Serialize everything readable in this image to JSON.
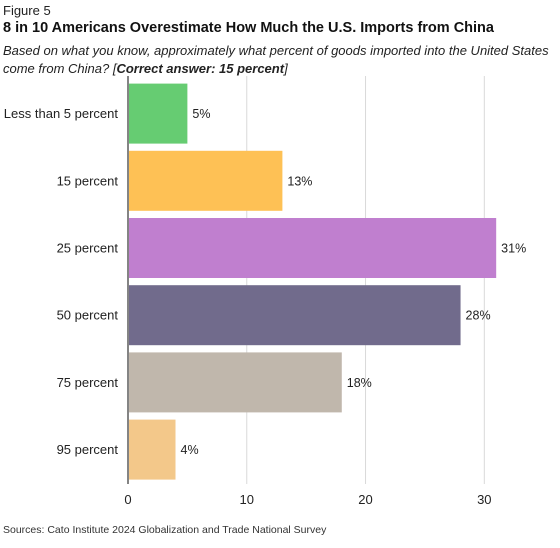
{
  "figure_label": "Figure 5",
  "title": "8 in 10 Americans Overestimate How Much the U.S. Imports from China",
  "subtitle_main": "Based on what you know, approximately what percent of goods imported into the United States come from China? [",
  "subtitle_answer": "Correct answer: 15 percent",
  "subtitle_end": "]",
  "source": "Sources: Cato Institute 2024 Globalization and Trade National Survey",
  "chart_data": {
    "type": "bar",
    "orientation": "horizontal",
    "categories": [
      "Less than 5 percent",
      "15 percent",
      "25 percent",
      "50 percent",
      "75 percent",
      "95 percent"
    ],
    "values": [
      5,
      13,
      31,
      28,
      18,
      4
    ],
    "value_labels": [
      "5%",
      "13%",
      "31%",
      "28%",
      "18%",
      "4%"
    ],
    "colors": [
      "#66cc72",
      "#fec155",
      "#c07fcf",
      "#716b8c",
      "#c0b7ac",
      "#f3c88a"
    ],
    "xlim": [
      0,
      32.5
    ],
    "xticks": [
      0,
      10,
      20,
      30
    ],
    "grid": true,
    "gridline_color": "#d9d9d9",
    "title": "8 in 10 Americans Overestimate How Much the U.S. Imports from China",
    "xlabel": "",
    "ylabel": ""
  }
}
